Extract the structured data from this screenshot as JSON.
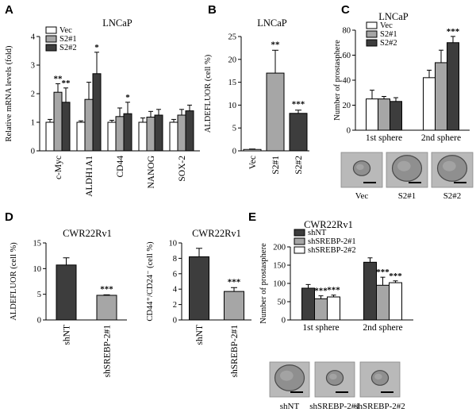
{
  "colors": {
    "vec": "#ffffff",
    "s21": "#a6a6a6",
    "s22": "#3d3d3d",
    "shnt": "#3d3d3d",
    "shsrebp": "#a6a6a6",
    "shsrebp2": "#ffffff"
  },
  "chart_data": [
    {
      "id": "A",
      "letter": "A",
      "type": "bar",
      "title": "LNCaP",
      "ylabel": "Relative mRNA levels (fold)",
      "ylim": [
        0,
        4
      ],
      "yticks": [
        0,
        1,
        2,
        3,
        4
      ],
      "categories": [
        "c-Myc",
        "ALDH1A1",
        "CD44",
        "NANOG",
        "SOX-2"
      ],
      "series": [
        {
          "name": "Vec",
          "color": "#ffffff",
          "values": [
            1.0,
            1.0,
            1.0,
            1.0,
            1.0
          ],
          "errors": [
            0.1,
            0.05,
            0.07,
            0.15,
            0.1
          ],
          "sig": [
            "",
            "",
            "",
            "",
            ""
          ]
        },
        {
          "name": "S2#1",
          "color": "#a6a6a6",
          "values": [
            2.05,
            1.8,
            1.2,
            1.18,
            1.25
          ],
          "errors": [
            0.3,
            0.6,
            0.3,
            0.2,
            0.2
          ],
          "sig": [
            "**",
            "",
            "",
            "",
            ""
          ]
        },
        {
          "name": "S2#2",
          "color": "#3d3d3d",
          "values": [
            1.7,
            2.7,
            1.3,
            1.25,
            1.4
          ],
          "errors": [
            0.5,
            0.75,
            0.4,
            0.2,
            0.2
          ],
          "sig": [
            "**",
            "*",
            "*",
            "",
            ""
          ]
        }
      ],
      "legend": "top-left"
    },
    {
      "id": "B",
      "letter": "B",
      "type": "bar",
      "title": "LNCaP",
      "ylabel": "ALDEFLUOR (cell %)",
      "ylim": [
        0,
        25
      ],
      "yticks": [
        0,
        5,
        10,
        15,
        20,
        25
      ],
      "categories": [
        "Vec",
        "S2#1",
        "S2#2"
      ],
      "series": [
        {
          "name": "value",
          "colors": [
            "#ffffff",
            "#a6a6a6",
            "#3d3d3d"
          ],
          "values": [
            0.3,
            17.0,
            8.2
          ],
          "errors": [
            0.1,
            5.0,
            0.7
          ],
          "sig": [
            "",
            "**",
            "***"
          ]
        }
      ]
    },
    {
      "id": "C",
      "letter": "C",
      "type": "bar",
      "title": "LNCaP",
      "ylabel": "Number of prostasphere",
      "ylim": [
        0,
        80
      ],
      "yticks": [
        0,
        20,
        40,
        60,
        80
      ],
      "categories": [
        "1st sphere",
        "2nd sphere"
      ],
      "series": [
        {
          "name": "Vec",
          "color": "#ffffff",
          "values": [
            25,
            42
          ],
          "errors": [
            7,
            6
          ],
          "sig": [
            "",
            ""
          ]
        },
        {
          "name": "S2#1",
          "color": "#a6a6a6",
          "values": [
            25,
            54
          ],
          "errors": [
            2,
            10
          ],
          "sig": [
            "",
            ""
          ]
        },
        {
          "name": "S2#2",
          "color": "#3d3d3d",
          "values": [
            23,
            70
          ],
          "errors": [
            3,
            5
          ],
          "sig": [
            "",
            "***"
          ]
        }
      ],
      "legend": "top-left"
    },
    {
      "id": "D1",
      "letter": "D",
      "type": "bar",
      "title": "CWR22Rv1",
      "ylabel": "ALDEFLUOR (cell %)",
      "ylim": [
        0,
        15
      ],
      "yticks": [
        0,
        5,
        10,
        15
      ],
      "categories": [
        "shNT",
        "shSREBP-2#1"
      ],
      "series": [
        {
          "name": "value",
          "colors": [
            "#3d3d3d",
            "#a6a6a6"
          ],
          "values": [
            10.7,
            4.8
          ],
          "errors": [
            1.4,
            0.1
          ],
          "sig": [
            "",
            "***"
          ]
        }
      ]
    },
    {
      "id": "D2",
      "letter": "",
      "type": "bar",
      "title": "CWR22Rv1",
      "ylabel": "CD44⁺/CD24⁻ (cell %)",
      "ylim": [
        0,
        10
      ],
      "yticks": [
        0,
        2,
        4,
        6,
        8,
        10
      ],
      "categories": [
        "shNT",
        "shSREBP-2#1"
      ],
      "series": [
        {
          "name": "value",
          "colors": [
            "#3d3d3d",
            "#a6a6a6"
          ],
          "values": [
            8.2,
            3.7
          ],
          "errors": [
            1.1,
            0.5
          ],
          "sig": [
            "",
            "***"
          ]
        }
      ]
    },
    {
      "id": "E",
      "letter": "E",
      "type": "bar",
      "title": "CWR22Rv1",
      "ylabel": "Number of prostasphere",
      "ylim": [
        0,
        200
      ],
      "yticks": [
        0,
        50,
        100,
        150,
        200
      ],
      "categories": [
        "1st sphere",
        "2nd sphere"
      ],
      "series": [
        {
          "name": "shNT",
          "color": "#3d3d3d",
          "values": [
            87,
            158
          ],
          "errors": [
            10,
            12
          ],
          "sig": [
            "",
            ""
          ]
        },
        {
          "name": "shSREBP-2#1",
          "color": "#a6a6a6",
          "values": [
            58,
            95
          ],
          "errors": [
            8,
            22
          ],
          "sig": [
            "***",
            "***"
          ]
        },
        {
          "name": "shSREBP-2#2",
          "color": "#ffffff",
          "values": [
            63,
            102
          ],
          "errors": [
            5,
            5
          ],
          "sig": [
            "***",
            "***"
          ]
        }
      ],
      "legend": "top-left"
    }
  ],
  "photos": {
    "C": [
      "Vec",
      "S2#1",
      "S2#2"
    ],
    "E": [
      "shNT",
      "shSREBP-2#1",
      "shSREBP-2#2"
    ]
  }
}
